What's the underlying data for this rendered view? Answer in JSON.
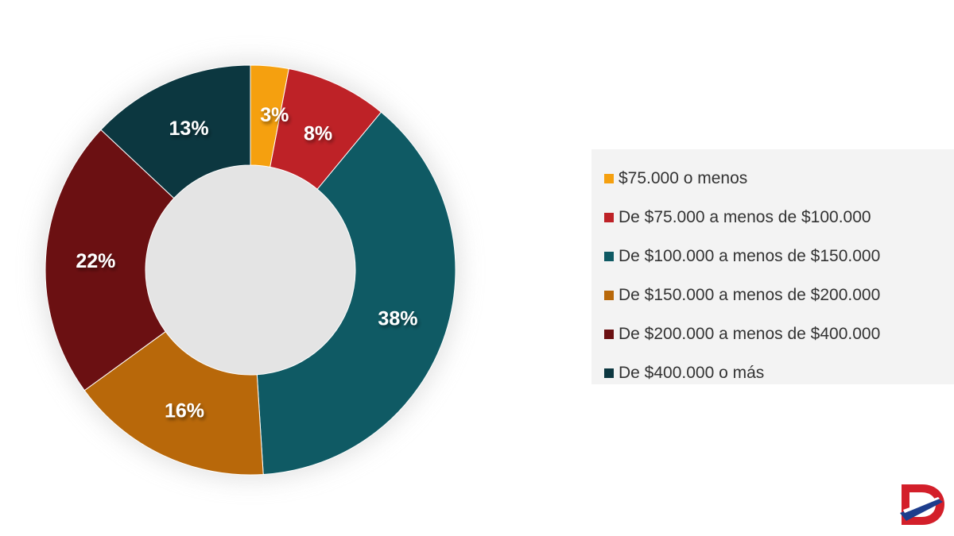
{
  "chart_data": {
    "type": "pie",
    "donut": true,
    "title": "",
    "categories": [
      "$75.000 o menos",
      "De $75.000 a menos de $100.000",
      "De $100.000 a menos de $150.000",
      "De $150.000 a menos de $200.000",
      "De $200.000 a menos de $400.000",
      "De $400.000 o más"
    ],
    "values": [
      3,
      8,
      38,
      16,
      22,
      13
    ],
    "labels": [
      "3%",
      "8%",
      "38%",
      "16%",
      "22%",
      "13%"
    ],
    "colors": [
      "#f5a00f",
      "#be2227",
      "#0f5a64",
      "#b8680a",
      "#6b1012",
      "#0c3740"
    ],
    "legend_position": "right"
  },
  "logo": {
    "icon": "brand-d-logo-icon"
  }
}
